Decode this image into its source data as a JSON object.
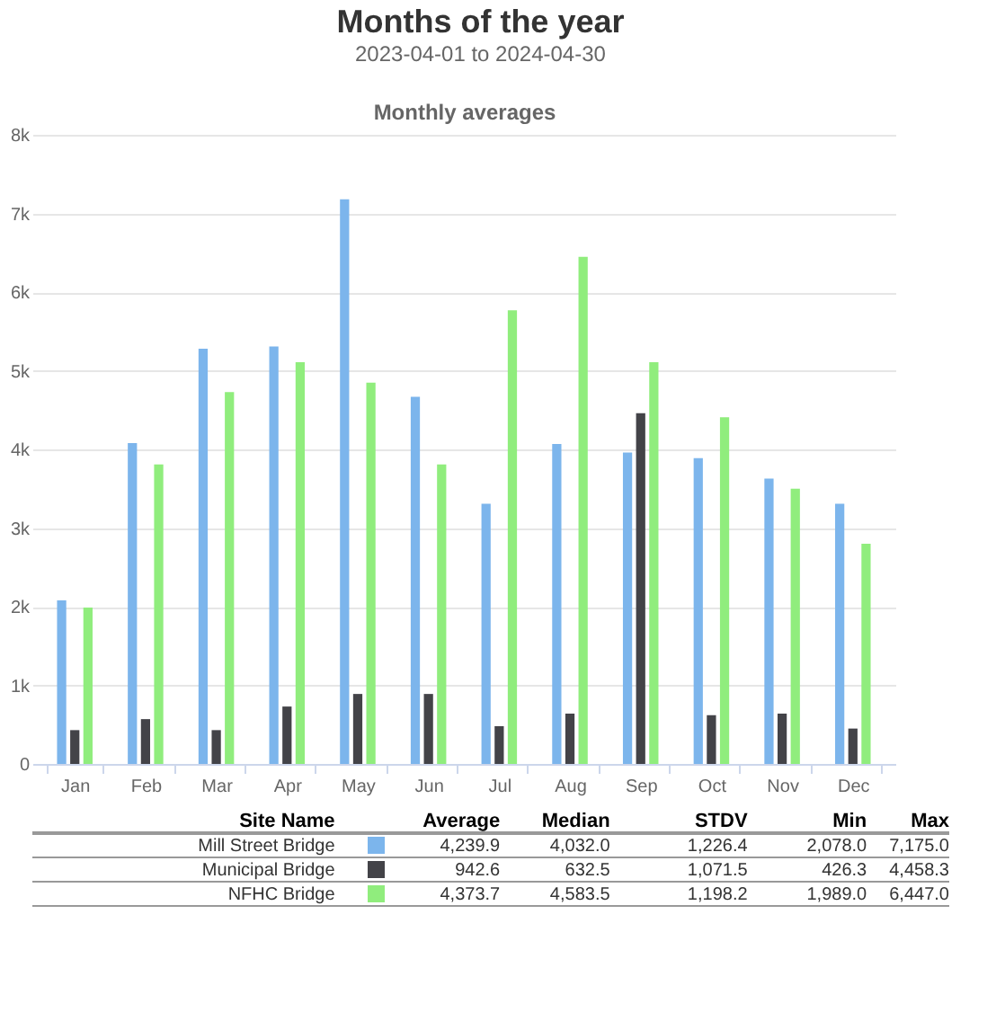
{
  "chart_data": {
    "type": "bar",
    "title": "Months of the year",
    "subtitle": "2023-04-01 to 2024-04-30",
    "ylabel": "Monthly averages",
    "categories": [
      "Jan",
      "Feb",
      "Mar",
      "Apr",
      "May",
      "Jun",
      "Jul",
      "Aug",
      "Sep",
      "Oct",
      "Nov",
      "Dec"
    ],
    "series": [
      {
        "name": "Mill Street Bridge",
        "color": "#7cb5ec",
        "values": [
          2080,
          4080,
          5280,
          5310,
          7180,
          4670,
          3310,
          4070,
          3960,
          3890,
          3630,
          3310
        ]
      },
      {
        "name": "Municipal Bridge",
        "color": "#434348",
        "values": [
          430,
          570,
          430,
          730,
          890,
          890,
          480,
          640,
          4460,
          620,
          640,
          450
        ]
      },
      {
        "name": "NFHC Bridge",
        "color": "#90ed7d",
        "values": [
          1990,
          3810,
          4730,
          5110,
          4850,
          3810,
          5770,
          6450,
          5110,
          4410,
          3500,
          2800
        ]
      }
    ],
    "ylim": [
      0,
      8000
    ],
    "yticks": [
      0,
      {
        "value": 1000,
        "label": "1k"
      },
      {
        "value": 2000,
        "label": "2k"
      },
      {
        "value": 3000,
        "label": "3k"
      },
      {
        "value": 4000,
        "label": "4k"
      },
      {
        "value": 5000,
        "label": "5k"
      },
      {
        "value": 6000,
        "label": "6k"
      },
      {
        "value": 7000,
        "label": "7k"
      },
      {
        "value": 8000,
        "label": "8k"
      }
    ],
    "grid": "y",
    "legend": "bottom",
    "annotations": [
      "Site Name",
      "Average",
      "Median",
      "STDV",
      "Min",
      "Max",
      "4,239.9",
      "4,032.0",
      "1,226.4",
      "2,078.0",
      "7,175.0",
      "942.6",
      "632.5",
      "1,071.5",
      "426.3",
      "4,458.3",
      "4,373.7",
      "4,583.5",
      "1,198.2",
      "1,989.0",
      "6,447.0"
    ]
  }
}
